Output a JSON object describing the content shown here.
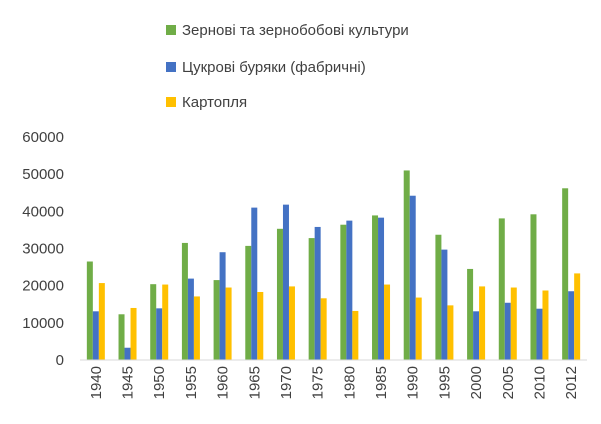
{
  "chart_data": {
    "type": "bar",
    "title": "",
    "xlabel": "",
    "ylabel": "",
    "ylim": [
      0,
      60000
    ],
    "yticks": [
      0,
      10000,
      20000,
      30000,
      40000,
      50000,
      60000
    ],
    "grid": false,
    "legend_position": "top",
    "categories": [
      "1940",
      "1945",
      "1950",
      "1955",
      "1960",
      "1965",
      "1970",
      "1975",
      "1980",
      "1985",
      "1990",
      "1995",
      "2000",
      "2005",
      "2010",
      "2012"
    ],
    "series": [
      {
        "name": "Зернові та зернобобові культури",
        "color": "#70ad47",
        "values": [
          26500,
          12300,
          20400,
          31500,
          21500,
          30700,
          35300,
          32800,
          36400,
          38900,
          51000,
          33700,
          24500,
          38100,
          39200,
          46200
        ]
      },
      {
        "name": "Цукрові буряки (фабричні)",
        "color": "#4472c4",
        "values": [
          13100,
          3300,
          13900,
          21900,
          29000,
          41000,
          41800,
          35800,
          37500,
          38300,
          44200,
          29700,
          13100,
          15400,
          13800,
          18500
        ]
      },
      {
        "name": "Картопля",
        "color": "#ffc000",
        "values": [
          20700,
          14000,
          20300,
          17100,
          19500,
          18300,
          19800,
          16600,
          13200,
          20300,
          16800,
          14700,
          19800,
          19500,
          18700,
          23300
        ]
      }
    ]
  }
}
